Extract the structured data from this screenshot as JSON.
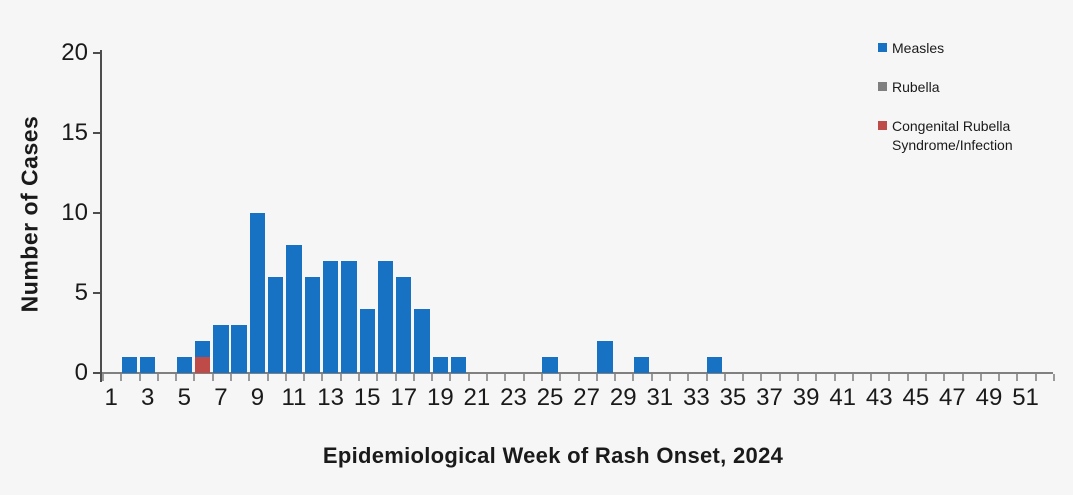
{
  "chart_data": {
    "type": "bar",
    "stacked": true,
    "title": "",
    "xlabel": "Epidemiological Week of Rash Onset, 2024",
    "ylabel": "Number of Cases",
    "ylim": [
      0,
      20
    ],
    "yticks": [
      0,
      5,
      10,
      15,
      20
    ],
    "x_tick_labels": [
      "1",
      "3",
      "5",
      "7",
      "9",
      "11",
      "13",
      "15",
      "17",
      "19",
      "21",
      "23",
      "25",
      "27",
      "29",
      "31",
      "33",
      "35",
      "37",
      "39",
      "41",
      "43",
      "45",
      "47",
      "49",
      "51"
    ],
    "categories": [
      1,
      2,
      3,
      4,
      5,
      6,
      7,
      8,
      9,
      10,
      11,
      12,
      13,
      14,
      15,
      16,
      17,
      18,
      19,
      20,
      21,
      22,
      23,
      24,
      25,
      26,
      27,
      28,
      29,
      30,
      31,
      32,
      33,
      34,
      35,
      36,
      37,
      38,
      39,
      40,
      41,
      42,
      43,
      44,
      45,
      46,
      47,
      48,
      49,
      50,
      51,
      52
    ],
    "series": [
      {
        "name": "Measles",
        "color": "#1772C4",
        "values": [
          0,
          1,
          1,
          0,
          1,
          1,
          3,
          3,
          10,
          6,
          8,
          6,
          7,
          7,
          4,
          7,
          6,
          4,
          1,
          1,
          0,
          0,
          0,
          0,
          1,
          0,
          0,
          2,
          0,
          1,
          0,
          0,
          0,
          1,
          0,
          0,
          0,
          0,
          0,
          0,
          0,
          0,
          0,
          0,
          0,
          0,
          0,
          0,
          0,
          0,
          0,
          0
        ]
      },
      {
        "name": "Rubella",
        "color": "#7F7F7F",
        "values": [
          0,
          0,
          0,
          0,
          0,
          0,
          0,
          0,
          0,
          0,
          0,
          0,
          0,
          0,
          0,
          0,
          0,
          0,
          0,
          0,
          0,
          0,
          0,
          0,
          0,
          0,
          0,
          0,
          0,
          0,
          0,
          0,
          0,
          0,
          0,
          0,
          0,
          0,
          0,
          0,
          0,
          0,
          0,
          0,
          0,
          0,
          0,
          0,
          0,
          0,
          0,
          0
        ]
      },
      {
        "name": "Congenital Rubella Syndrome/Infection",
        "color": "#BE4B48",
        "values": [
          0,
          0,
          0,
          0,
          0,
          1,
          0,
          0,
          0,
          0,
          0,
          0,
          0,
          0,
          0,
          0,
          0,
          0,
          0,
          0,
          0,
          0,
          0,
          0,
          0,
          0,
          0,
          0,
          0,
          0,
          0,
          0,
          0,
          0,
          0,
          0,
          0,
          0,
          0,
          0,
          0,
          0,
          0,
          0,
          0,
          0,
          0,
          0,
          0,
          0,
          0,
          0
        ]
      }
    ],
    "stack_order_bottom_to_top": [
      "Congenital Rubella Syndrome/Infection",
      "Rubella",
      "Measles"
    ],
    "legend_position": "top-right",
    "grid": false
  },
  "legend": {
    "items": [
      {
        "label": "Measles",
        "color": "#1772C4"
      },
      {
        "label": "Rubella",
        "color": "#7F7F7F"
      },
      {
        "label": "Congenital Rubella Syndrome/Infection",
        "color": "#BE4B48"
      }
    ]
  }
}
